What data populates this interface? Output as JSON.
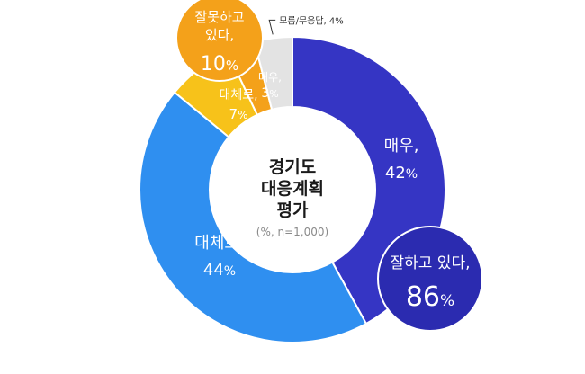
{
  "chart_data": {
    "type": "pie",
    "title_lines": [
      "경기도",
      "대응계획",
      "평가"
    ],
    "subtitle": "(%, n=1,000)",
    "slices": [
      {
        "key": "very_good",
        "label": "매우,",
        "value": 42,
        "color": "#3535c4",
        "text_color": "#ffffff"
      },
      {
        "key": "mostly_good",
        "label": "대체로,",
        "value": 44,
        "color": "#2f8ff0",
        "text_color": "#ffffff"
      },
      {
        "key": "mostly_bad",
        "label": "대체로,",
        "value": 7,
        "color": "#f7c21a",
        "text_color": "#ffffff"
      },
      {
        "key": "very_bad",
        "label": "매우,",
        "value": 3,
        "color": "#f4a11a",
        "text_color": "#ffffff"
      },
      {
        "key": "dont_know",
        "label": "모름/무응답, 4%",
        "value": 4,
        "color": "#e3e3e3",
        "text_color": "#333333"
      }
    ],
    "callouts": [
      {
        "key": "good_total",
        "label": "잘하고 있다,",
        "value": 86,
        "color": "#2b2bb0"
      },
      {
        "key": "bad_total",
        "label_lines": [
          "잘못하고",
          "있다,"
        ],
        "value": 10,
        "color": "#f4a11a"
      }
    ],
    "unit": "%"
  }
}
